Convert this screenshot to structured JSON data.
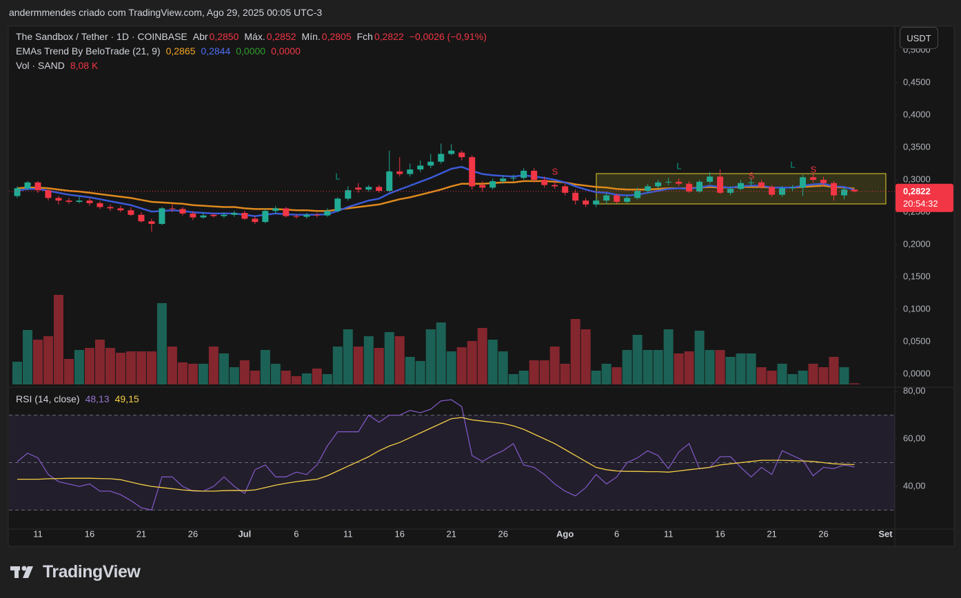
{
  "header": "andermmendes criado com TradingView.com, Ago 29, 2025 00:05 UTC-3",
  "legend": {
    "symbol": "The Sandbox / Tether · 1D · COINBASE",
    "open_label": "Abr",
    "open": "0,2850",
    "high_label": "Máx.",
    "high": "0,2852",
    "low_label": "Mín.",
    "low": "0,2805",
    "close_label": "Fch",
    "close": "0,2822",
    "change": "−0,0026 (−0,91%)"
  },
  "indicator": {
    "name": "EMAs Trend By BeloTrade (21, 9)",
    "values": [
      "0,2865",
      "0,2844",
      "0,0000",
      "0,0000"
    ]
  },
  "volume": {
    "name": "Vol · SAND",
    "value": "8,08 K"
  },
  "rsi": {
    "name": "RSI (14, close)",
    "values": [
      "48,13",
      "49,15"
    ]
  },
  "currency": "USDT",
  "logo": "TradingView",
  "signals": [
    "L",
    "S",
    "L",
    "S",
    "L",
    "S"
  ],
  "chart_data": [
    {
      "type": "candlestick",
      "up_color": "#22ab94",
      "down_color": "#f23645",
      "open": [
        0.275,
        0.287,
        0.296,
        0.284,
        0.272,
        0.268,
        0.266,
        0.268,
        0.264,
        0.258,
        0.256,
        0.253,
        0.246,
        0.236,
        0.232,
        0.256,
        0.255,
        0.248,
        0.242,
        0.246,
        0.244,
        0.246,
        0.249,
        0.24,
        0.235,
        0.252,
        0.256,
        0.244,
        0.243,
        0.246,
        0.245,
        0.252,
        0.271,
        0.288,
        0.285,
        0.289,
        0.283,
        0.313,
        0.309,
        0.316,
        0.322,
        0.328,
        0.34,
        0.342,
        0.335,
        0.292,
        0.288,
        0.298,
        0.302,
        0.303,
        0.314,
        0.3,
        0.292,
        0.29,
        0.28,
        0.268,
        0.262,
        0.268,
        0.276,
        0.266,
        0.272,
        0.283,
        0.29,
        0.296,
        0.297,
        0.294,
        0.282,
        0.297,
        0.305,
        0.28,
        0.286,
        0.295,
        0.296,
        0.289,
        0.277,
        0.287,
        0.288,
        0.304,
        0.3,
        0.295,
        0.276,
        0.285
      ],
      "high": [
        0.29,
        0.298,
        0.298,
        0.286,
        0.275,
        0.272,
        0.274,
        0.272,
        0.267,
        0.262,
        0.26,
        0.258,
        0.25,
        0.24,
        0.258,
        0.262,
        0.258,
        0.252,
        0.25,
        0.248,
        0.25,
        0.252,
        0.252,
        0.244,
        0.255,
        0.26,
        0.258,
        0.247,
        0.249,
        0.249,
        0.256,
        0.273,
        0.29,
        0.295,
        0.292,
        0.292,
        0.345,
        0.335,
        0.325,
        0.33,
        0.34,
        0.356,
        0.355,
        0.345,
        0.338,
        0.298,
        0.302,
        0.306,
        0.308,
        0.318,
        0.318,
        0.305,
        0.298,
        0.295,
        0.285,
        0.272,
        0.272,
        0.28,
        0.279,
        0.276,
        0.288,
        0.294,
        0.3,
        0.303,
        0.302,
        0.298,
        0.3,
        0.312,
        0.316,
        0.29,
        0.3,
        0.303,
        0.3,
        0.292,
        0.29,
        0.292,
        0.308,
        0.31,
        0.305,
        0.298,
        0.288,
        0.2852
      ],
      "low": [
        0.272,
        0.284,
        0.28,
        0.268,
        0.262,
        0.263,
        0.264,
        0.26,
        0.255,
        0.252,
        0.25,
        0.244,
        0.234,
        0.22,
        0.23,
        0.25,
        0.245,
        0.238,
        0.24,
        0.242,
        0.241,
        0.243,
        0.238,
        0.232,
        0.233,
        0.248,
        0.242,
        0.24,
        0.24,
        0.242,
        0.243,
        0.25,
        0.268,
        0.28,
        0.282,
        0.28,
        0.281,
        0.305,
        0.305,
        0.312,
        0.318,
        0.325,
        0.338,
        0.33,
        0.285,
        0.282,
        0.285,
        0.294,
        0.298,
        0.3,
        0.296,
        0.288,
        0.286,
        0.276,
        0.262,
        0.258,
        0.258,
        0.262,
        0.263,
        0.264,
        0.27,
        0.28,
        0.287,
        0.292,
        0.29,
        0.28,
        0.28,
        0.294,
        0.278,
        0.276,
        0.284,
        0.29,
        0.286,
        0.274,
        0.274,
        0.282,
        0.275,
        0.296,
        0.29,
        0.268,
        0.27,
        0.2805
      ],
      "close": [
        0.287,
        0.296,
        0.284,
        0.272,
        0.268,
        0.266,
        0.268,
        0.264,
        0.258,
        0.256,
        0.253,
        0.246,
        0.236,
        0.232,
        0.256,
        0.255,
        0.248,
        0.242,
        0.245,
        0.244,
        0.246,
        0.249,
        0.24,
        0.235,
        0.252,
        0.256,
        0.244,
        0.243,
        0.246,
        0.245,
        0.252,
        0.271,
        0.284,
        0.285,
        0.289,
        0.283,
        0.313,
        0.309,
        0.316,
        0.322,
        0.328,
        0.34,
        0.345,
        0.335,
        0.29,
        0.288,
        0.298,
        0.302,
        0.303,
        0.314,
        0.3,
        0.292,
        0.29,
        0.28,
        0.268,
        0.262,
        0.268,
        0.276,
        0.266,
        0.272,
        0.283,
        0.29,
        0.296,
        0.297,
        0.294,
        0.282,
        0.297,
        0.305,
        0.28,
        0.286,
        0.295,
        0.296,
        0.289,
        0.277,
        0.287,
        0.288,
        0.304,
        0.3,
        0.295,
        0.276,
        0.285,
        0.2822
      ],
      "lines": [
        {
          "color": "#e08a1e",
          "values": [
            0.287,
            0.288,
            0.288,
            0.287,
            0.285,
            0.283,
            0.282,
            0.28,
            0.278,
            0.276,
            0.274,
            0.272,
            0.269,
            0.266,
            0.265,
            0.264,
            0.263,
            0.261,
            0.26,
            0.259,
            0.258,
            0.258,
            0.256,
            0.255,
            0.255,
            0.255,
            0.254,
            0.253,
            0.253,
            0.252,
            0.252,
            0.254,
            0.256,
            0.258,
            0.26,
            0.262,
            0.266,
            0.27,
            0.273,
            0.277,
            0.281,
            0.285,
            0.29,
            0.294,
            0.294,
            0.294,
            0.295,
            0.296,
            0.296,
            0.298,
            0.298,
            0.298,
            0.297,
            0.296,
            0.293,
            0.291,
            0.289,
            0.288,
            0.286,
            0.285,
            0.285,
            0.285,
            0.286,
            0.287,
            0.287,
            0.287,
            0.288,
            0.289,
            0.288,
            0.288,
            0.289,
            0.289,
            0.289,
            0.288,
            0.288,
            0.288,
            0.289,
            0.29,
            0.291,
            0.289,
            0.288,
            0.2865
          ]
        },
        {
          "color": "#3a5bd9",
          "values": [
            0.283,
            0.286,
            0.286,
            0.283,
            0.28,
            0.277,
            0.275,
            0.273,
            0.27,
            0.267,
            0.264,
            0.261,
            0.256,
            0.251,
            0.252,
            0.253,
            0.252,
            0.25,
            0.249,
            0.248,
            0.248,
            0.248,
            0.246,
            0.244,
            0.246,
            0.248,
            0.247,
            0.246,
            0.246,
            0.246,
            0.247,
            0.252,
            0.258,
            0.263,
            0.268,
            0.271,
            0.279,
            0.285,
            0.291,
            0.297,
            0.303,
            0.31,
            0.317,
            0.32,
            0.314,
            0.309,
            0.307,
            0.306,
            0.305,
            0.307,
            0.305,
            0.303,
            0.3,
            0.296,
            0.29,
            0.285,
            0.281,
            0.28,
            0.277,
            0.276,
            0.277,
            0.28,
            0.283,
            0.286,
            0.287,
            0.286,
            0.288,
            0.291,
            0.289,
            0.288,
            0.29,
            0.291,
            0.291,
            0.288,
            0.288,
            0.288,
            0.291,
            0.293,
            0.294,
            0.29,
            0.289,
            0.2844
          ]
        }
      ],
      "last_price": {
        "value": 0.2822,
        "label": "0,2822"
      },
      "countdown": "20:54:32",
      "xlim": [
        -0.8,
        84.9
      ],
      "xticks": [
        {
          "value": 2,
          "label": "11"
        },
        {
          "value": 7,
          "label": "16"
        },
        {
          "value": 12,
          "label": "21"
        },
        {
          "value": 17,
          "label": "26"
        },
        {
          "value": 22,
          "label": "Jul"
        },
        {
          "value": 27,
          "label": "6"
        },
        {
          "value": 32,
          "label": "11"
        },
        {
          "value": 37,
          "label": "16"
        },
        {
          "value": 42,
          "label": "21"
        },
        {
          "value": 47,
          "label": "26"
        },
        {
          "value": 53,
          "label": "Ago"
        },
        {
          "value": 58,
          "label": "6"
        },
        {
          "value": 63,
          "label": "11"
        },
        {
          "value": 68,
          "label": "16"
        },
        {
          "value": 73,
          "label": "21"
        },
        {
          "value": 78,
          "label": "26"
        },
        {
          "value": 84,
          "label": "Set"
        }
      ],
      "ylim": [
        -0.02,
        0.535
      ],
      "yticks": [
        {
          "value": 0,
          "label": "0,0000"
        },
        {
          "value": 0.05,
          "label": "0,0500"
        },
        {
          "value": 0.1,
          "label": "0,1000"
        },
        {
          "value": 0.15,
          "label": "0,1500"
        },
        {
          "value": 0.2,
          "label": "0,2000"
        },
        {
          "value": 0.25,
          "label": "0,2500"
        },
        {
          "value": 0.3,
          "label": "0,3000"
        },
        {
          "value": 0.35,
          "label": "0,3500"
        },
        {
          "value": 0.4,
          "label": "0,4000"
        },
        {
          "value": 0.45,
          "label": "0,4500"
        },
        {
          "value": 0.5,
          "label": "0,5000"
        }
      ]
    },
    {
      "type": "bar",
      "up_color": "rgba(34,171,148,0.5)",
      "down_color": "rgba(242,54,69,0.5)",
      "values": [
        165,
        395,
        325,
        350,
        650,
        185,
        250,
        265,
        325,
        265,
        230,
        240,
        240,
        240,
        590,
        275,
        160,
        150,
        150,
        275,
        225,
        125,
        175,
        100,
        250,
        150,
        100,
        60,
        80,
        115,
        75,
        275,
        400,
        275,
        350,
        265,
        380,
        350,
        200,
        170,
        400,
        450,
        240,
        270,
        315,
        410,
        325,
        240,
        75,
        100,
        175,
        175,
        275,
        150,
        475,
        400,
        100,
        150,
        125,
        250,
        360,
        250,
        250,
        400,
        225,
        240,
        390,
        250,
        250,
        200,
        225,
        225,
        125,
        100,
        150,
        75,
        100,
        150,
        125,
        200,
        125,
        8.08
      ],
      "ylim": [
        0,
        650
      ]
    },
    {
      "type": "line",
      "series": [
        {
          "color": "#7e57c2",
          "values": [
            50.4,
            54,
            52,
            45,
            42,
            41,
            40,
            41,
            38,
            38,
            36.5,
            34,
            31,
            30,
            44,
            44,
            40,
            38,
            38,
            40,
            44,
            40,
            37,
            47,
            49,
            44,
            44,
            46,
            45,
            49,
            57,
            63,
            63,
            63,
            70,
            67,
            70,
            70,
            72,
            71,
            72.5,
            76,
            76.5,
            73.6,
            53,
            50.5,
            53,
            55,
            58,
            49,
            48,
            45,
            41,
            38,
            36,
            39.5,
            45,
            41,
            44,
            50,
            52,
            55,
            53,
            47.5,
            54.5,
            58,
            47.5,
            48,
            52.5,
            52.5,
            48,
            44,
            48,
            45,
            55,
            53,
            51,
            44.5,
            48,
            47.5,
            49,
            48.13
          ]
        },
        {
          "color": "#f7d046",
          "values": [
            43,
            43,
            43,
            43.2,
            43.3,
            43.4,
            43.4,
            43.4,
            43.3,
            43.2,
            42.8,
            41.8,
            40.8,
            40,
            39.5,
            39,
            38.5,
            38.2,
            38,
            38,
            38.2,
            38.3,
            38.2,
            38.5,
            39.5,
            40.5,
            41.3,
            42,
            42.5,
            43,
            44.5,
            46.5,
            48.5,
            50.5,
            52.5,
            55,
            57,
            58.5,
            60.5,
            62.5,
            64.5,
            66.5,
            68.5,
            69,
            68,
            67.5,
            67,
            66.5,
            65.5,
            64,
            62,
            60,
            58,
            55.5,
            53,
            50.5,
            48,
            47,
            46.5,
            46.3,
            46.3,
            46.2,
            46.2,
            46,
            46.5,
            47,
            47.5,
            48,
            49,
            49.5,
            50,
            50.5,
            51,
            51,
            51,
            50.8,
            50.7,
            50.5,
            50,
            49.5,
            49.3,
            49.15
          ]
        }
      ],
      "levels": [
        30,
        50,
        70
      ],
      "ylim": [
        22,
        80.9
      ],
      "yticks": [
        {
          "value": 40,
          "label": "40,00"
        },
        {
          "value": 60,
          "label": "60,00"
        },
        {
          "value": 80,
          "label": "80,00"
        }
      ]
    }
  ]
}
